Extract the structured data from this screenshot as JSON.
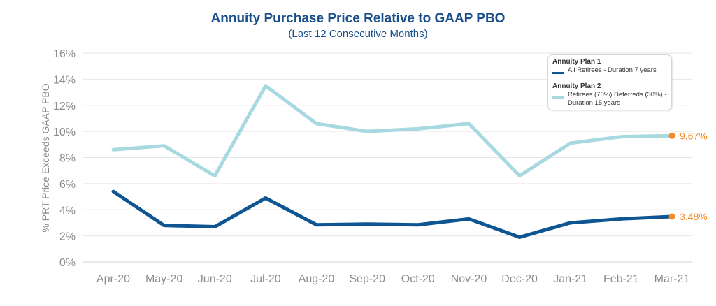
{
  "chart_data": {
    "type": "line",
    "title": "Annuity Purchase Price Relative to GAAP PBO",
    "subtitle": "(Last 12 Consecutive Months)",
    "xlabel": "",
    "ylabel": "% PRT Price Exceeds GAAP PBO",
    "ylim": [
      0,
      16
    ],
    "yticks": [
      "0%",
      "2%",
      "4%",
      "6%",
      "8%",
      "10%",
      "12%",
      "14%",
      "16%"
    ],
    "grid": true,
    "categories": [
      "Apr-20",
      "May-20",
      "Jun-20",
      "Jul-20",
      "Aug-20",
      "Sep-20",
      "Oct-20",
      "Nov-20",
      "Dec-20",
      "Jan-21",
      "Feb-21",
      "Mar-21"
    ],
    "series": [
      {
        "name": "Annuity Plan 1",
        "description": "All Retirees - Duration 7 years",
        "color": "#0f5592",
        "values": [
          5.4,
          2.8,
          2.7,
          4.9,
          2.85,
          2.9,
          2.85,
          3.3,
          1.9,
          3.0,
          3.3,
          3.48
        ],
        "end_label": "3.48%"
      },
      {
        "name": "Annuity Plan 2",
        "description": "Retirees (70%) Deferreds (30%) - Duration 15 years",
        "color": "#a8d8e0",
        "values": [
          8.6,
          8.9,
          6.6,
          13.5,
          10.6,
          10.0,
          10.2,
          10.6,
          6.6,
          9.1,
          9.6,
          9.67
        ],
        "end_label": "9.67%"
      }
    ],
    "end_marker_color": "#f28c28",
    "legend_position": "top-right"
  }
}
